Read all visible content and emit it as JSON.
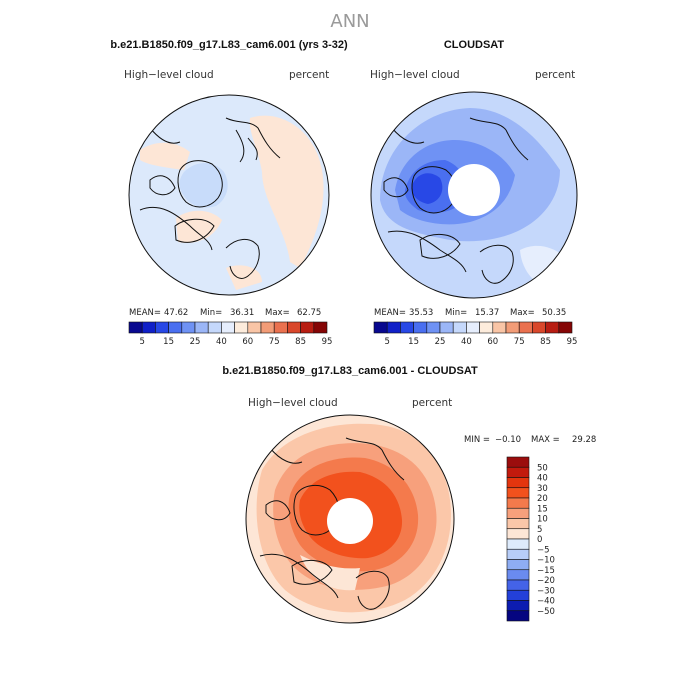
{
  "page_title": "ANN",
  "colors": {
    "coast": "#111111",
    "text": "#222222",
    "title": "#999999",
    "hole": "#ffffff"
  },
  "panels": [
    {
      "id": "model",
      "header": "b.e21.B1850.f09_g17.L83_cam6.001 (yrs 3-32)",
      "var_label": "High−level cloud",
      "unit_label": "percent",
      "stats": {
        "mean_label": "MEAN=",
        "mean": "47.62",
        "min_label": "Min=",
        "min": "36.31",
        "max_label": "Max=",
        "max": "62.75"
      },
      "has_hole": false
    },
    {
      "id": "obs",
      "header": "CLOUDSAT",
      "var_label": "High−level cloud",
      "unit_label": "percent",
      "stats": {
        "mean_label": "MEAN=",
        "mean": "35.53",
        "min_label": "Min=",
        "min": "15.37",
        "max_label": "Max=",
        "max": "50.35"
      },
      "has_hole": true
    }
  ],
  "abs_colorbar": {
    "colors": [
      "#08088f",
      "#1020c8",
      "#2848e6",
      "#4a6ff0",
      "#6f92f4",
      "#9bb6f7",
      "#c5d8fb",
      "#e6eefd",
      "#fdecdc",
      "#f9c5a6",
      "#f29c77",
      "#ea714f",
      "#d9472b",
      "#b81d12",
      "#850505"
    ],
    "tick_labels": [
      "5",
      "15",
      "25",
      "40",
      "60",
      "75",
      "85",
      "95"
    ]
  },
  "diff_panel": {
    "header": "b.e21.B1850.f09_g17.L83_cam6.001 - CLOUDSAT",
    "var_label": "High−level cloud",
    "unit_label": "percent",
    "min_label": "MIN =",
    "min": "−0.10",
    "max_label": "MAX =",
    "max": "29.28"
  },
  "diff_colorbar": {
    "colors_top_to_bottom": [
      "#9b0d0d",
      "#c21a0d",
      "#e3350e",
      "#f2511d",
      "#f47a4c",
      "#f7a07c",
      "#fbc7a9",
      "#fde6d6",
      "#deebfc",
      "#b7cdf8",
      "#8eadf3",
      "#6a8bef",
      "#4463e8",
      "#2340d9",
      "#0c1cb0",
      "#050580"
    ],
    "labels_top_to_bottom": [
      "50",
      "40",
      "30",
      "20",
      "15",
      "10",
      "5",
      "0",
      "−5",
      "−10",
      "−15",
      "−20",
      "−30",
      "−40",
      "−50"
    ]
  },
  "chart_data": [
    {
      "type": "heatmap",
      "title": "b.e21.B1850.f09_g17.L83_cam6.001 (yrs 3-32)",
      "subtitle_left": "High−level cloud",
      "subtitle_right": "percent",
      "projection": "north polar stereographic",
      "stats": {
        "mean": 47.62,
        "min": 36.31,
        "max": 62.75
      },
      "contour_levels": [
        5,
        15,
        25,
        40,
        60,
        75,
        85,
        95
      ],
      "units": "percent"
    },
    {
      "type": "heatmap",
      "title": "CLOUDSAT",
      "subtitle_left": "High−level cloud",
      "subtitle_right": "percent",
      "projection": "north polar stereographic",
      "stats": {
        "mean": 35.53,
        "min": 15.37,
        "max": 50.35
      },
      "contour_levels": [
        5,
        15,
        25,
        40,
        60,
        75,
        85,
        95
      ],
      "units": "percent"
    },
    {
      "type": "heatmap",
      "title": "b.e21.B1850.f09_g17.L83_cam6.001 - CLOUDSAT",
      "subtitle_left": "High−level cloud",
      "subtitle_right": "percent",
      "projection": "north polar stereographic",
      "stats": {
        "min": -0.1,
        "max": 29.28
      },
      "contour_levels": [
        -50,
        -40,
        -30,
        -20,
        -15,
        -10,
        -5,
        0,
        5,
        10,
        15,
        20,
        30,
        40,
        50
      ],
      "units": "percent"
    }
  ]
}
